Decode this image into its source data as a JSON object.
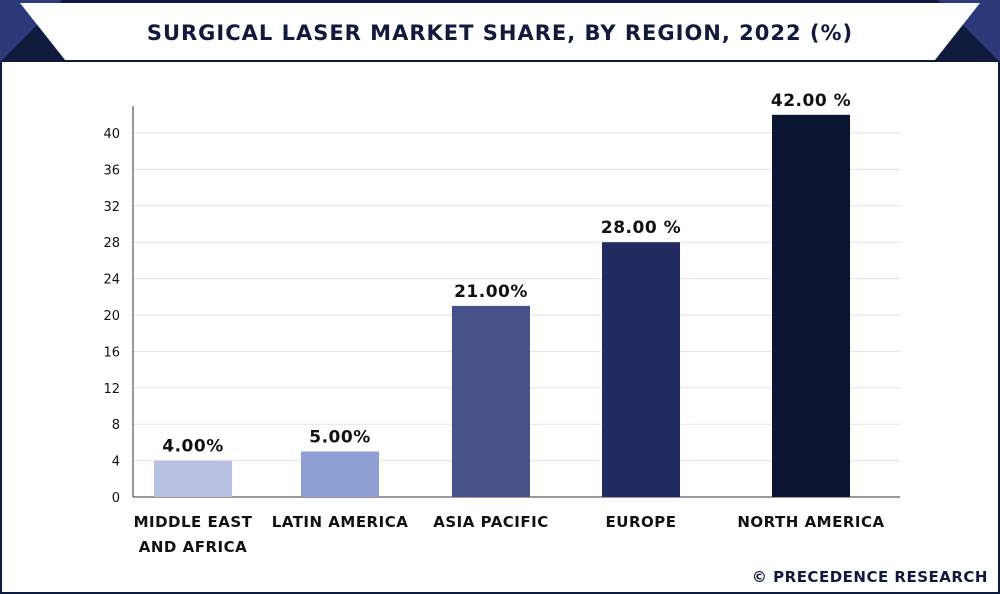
{
  "chart_data": {
    "type": "bar",
    "title": "SURGICAL LASER MARKET SHARE, BY REGION, 2022 (%)",
    "categories": [
      [
        "MIDDLE EAST",
        "AND AFRICA"
      ],
      [
        "LATIN AMERICA"
      ],
      [
        "ASIA PACIFIC"
      ],
      [
        "EUROPE"
      ],
      [
        "NORTH AMERICA"
      ]
    ],
    "values": [
      4,
      5,
      21,
      28,
      42
    ],
    "data_labels": [
      "4.00%",
      "5.00%",
      "21.00%",
      "28.00 %",
      "42.00 %"
    ],
    "bar_colors": [
      "#b9c1e2",
      "#8e9fd4",
      "#47528a",
      "#222a62",
      "#0d1535"
    ],
    "yticks": [
      0,
      4,
      8,
      12,
      16,
      20,
      24,
      28,
      32,
      36,
      40
    ],
    "ylim": [
      0,
      42
    ],
    "xlabel": "",
    "ylabel": "",
    "grid": true
  },
  "credit": "© PRECEDENCE RESEARCH",
  "colors": {
    "navy": "#0f1a3c",
    "accent": "#2c3a7a"
  }
}
